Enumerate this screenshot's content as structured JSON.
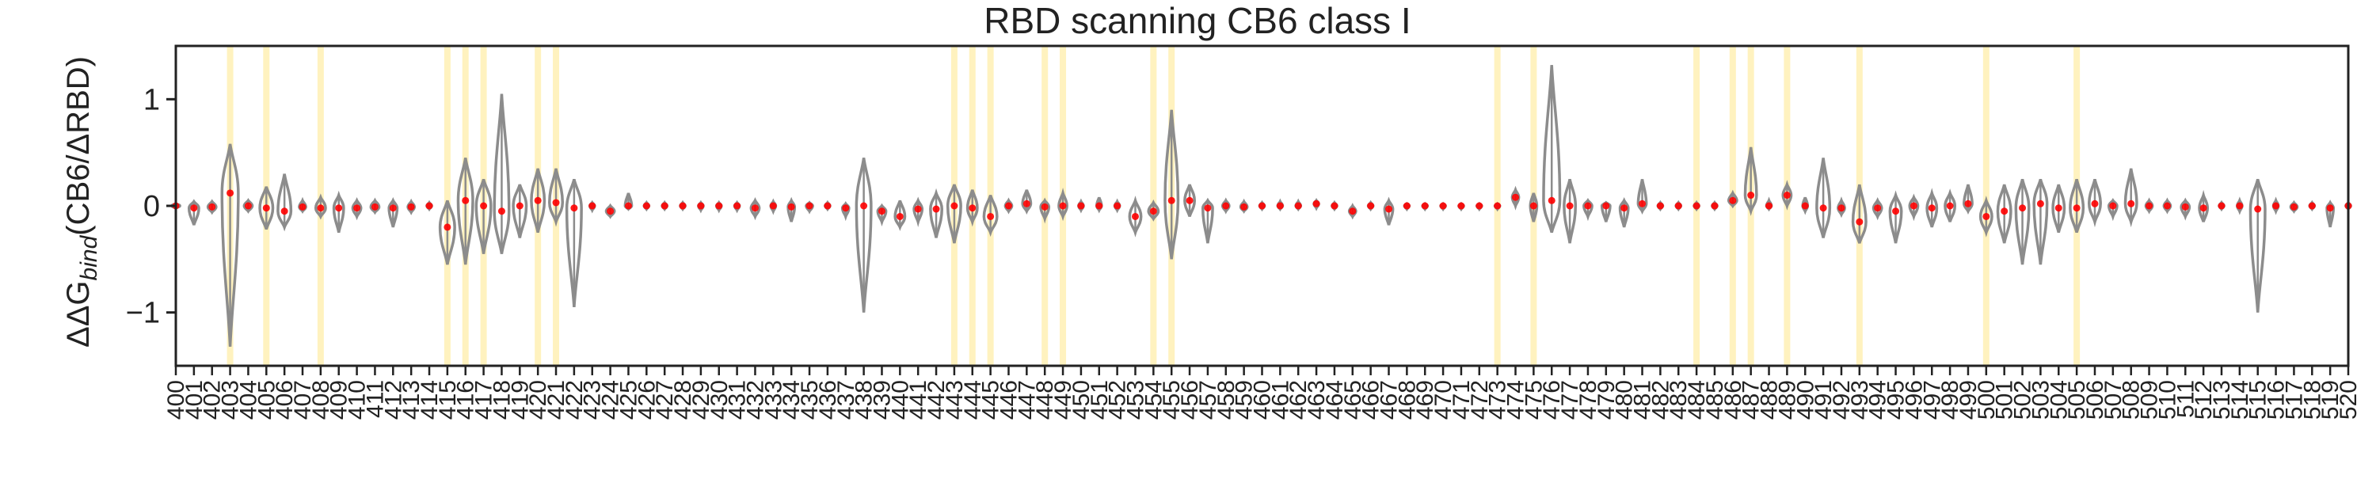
{
  "chart_data": {
    "type": "violin",
    "title": "RBD scanning CB6 class I",
    "ylabel_parts": {
      "prefix": "ΔΔG",
      "subscript": "bind",
      "suffix": "(CB6/ΔRBD)"
    },
    "xlabel": "",
    "ylim": [
      -1.5,
      1.5
    ],
    "y_ticks": [
      1,
      0,
      -1
    ],
    "xlim": [
      400,
      520
    ],
    "grid": false,
    "colors": {
      "violin": "#8c8c8c",
      "points": "#ff0000",
      "highlight": "#fff2bf",
      "axis": "#222222"
    },
    "highlighted_positions": [
      403,
      405,
      408,
      415,
      416,
      417,
      420,
      421,
      443,
      444,
      445,
      448,
      449,
      454,
      455,
      473,
      475,
      484,
      486,
      487,
      489,
      493,
      500,
      505
    ],
    "residues": [
      {
        "x": 400,
        "min": -0.02,
        "max": 0.02,
        "median": 0.0,
        "w": 0.5
      },
      {
        "x": 401,
        "min": -0.18,
        "max": 0.04,
        "median": -0.02,
        "w": 0.6
      },
      {
        "x": 402,
        "min": -0.06,
        "max": 0.04,
        "median": -0.01,
        "w": 0.5
      },
      {
        "x": 403,
        "min": -1.32,
        "max": 0.58,
        "median": 0.12,
        "w": 1.0
      },
      {
        "x": 404,
        "min": -0.05,
        "max": 0.05,
        "median": 0.0,
        "w": 0.5
      },
      {
        "x": 405,
        "min": -0.22,
        "max": 0.18,
        "median": -0.02,
        "w": 0.8
      },
      {
        "x": 406,
        "min": -0.2,
        "max": 0.3,
        "median": -0.05,
        "w": 0.8
      },
      {
        "x": 407,
        "min": -0.05,
        "max": 0.05,
        "median": -0.01,
        "w": 0.4
      },
      {
        "x": 408,
        "min": -0.1,
        "max": 0.08,
        "median": -0.02,
        "w": 0.6
      },
      {
        "x": 409,
        "min": -0.25,
        "max": 0.1,
        "median": -0.02,
        "w": 0.6
      },
      {
        "x": 410,
        "min": -0.1,
        "max": 0.05,
        "median": -0.02,
        "w": 0.5
      },
      {
        "x": 411,
        "min": -0.06,
        "max": 0.05,
        "median": -0.01,
        "w": 0.5
      },
      {
        "x": 412,
        "min": -0.2,
        "max": 0.05,
        "median": -0.02,
        "w": 0.5
      },
      {
        "x": 413,
        "min": -0.06,
        "max": 0.04,
        "median": -0.01,
        "w": 0.4
      },
      {
        "x": 414,
        "min": -0.03,
        "max": 0.03,
        "median": 0.0,
        "w": 0.3
      },
      {
        "x": 415,
        "min": -0.55,
        "max": 0.05,
        "median": -0.2,
        "w": 0.9
      },
      {
        "x": 416,
        "min": -0.55,
        "max": 0.45,
        "median": 0.05,
        "w": 0.9
      },
      {
        "x": 417,
        "min": -0.45,
        "max": 0.25,
        "median": 0.0,
        "w": 0.9
      },
      {
        "x": 418,
        "min": -0.45,
        "max": 1.05,
        "median": -0.05,
        "w": 0.9
      },
      {
        "x": 419,
        "min": -0.3,
        "max": 0.2,
        "median": 0.0,
        "w": 0.8
      },
      {
        "x": 420,
        "min": -0.25,
        "max": 0.35,
        "median": 0.05,
        "w": 0.8
      },
      {
        "x": 421,
        "min": -0.15,
        "max": 0.35,
        "median": 0.03,
        "w": 0.8
      },
      {
        "x": 422,
        "min": -0.95,
        "max": 0.25,
        "median": -0.02,
        "w": 0.9
      },
      {
        "x": 423,
        "min": -0.04,
        "max": 0.03,
        "median": 0.0,
        "w": 0.3
      },
      {
        "x": 424,
        "min": -0.1,
        "max": 0.0,
        "median": -0.05,
        "w": 0.5
      },
      {
        "x": 425,
        "min": -0.03,
        "max": 0.12,
        "median": 0.0,
        "w": 0.4
      },
      {
        "x": 426,
        "min": -0.03,
        "max": 0.03,
        "median": 0.0,
        "w": 0.3
      },
      {
        "x": 427,
        "min": -0.03,
        "max": 0.03,
        "median": 0.0,
        "w": 0.3
      },
      {
        "x": 428,
        "min": -0.03,
        "max": 0.03,
        "median": 0.0,
        "w": 0.3
      },
      {
        "x": 429,
        "min": -0.04,
        "max": 0.03,
        "median": 0.0,
        "w": 0.3
      },
      {
        "x": 430,
        "min": -0.04,
        "max": 0.03,
        "median": 0.0,
        "w": 0.3
      },
      {
        "x": 431,
        "min": -0.04,
        "max": 0.03,
        "median": 0.0,
        "w": 0.3
      },
      {
        "x": 432,
        "min": -0.1,
        "max": 0.05,
        "median": -0.02,
        "w": 0.5
      },
      {
        "x": 433,
        "min": -0.05,
        "max": 0.04,
        "median": 0.0,
        "w": 0.3
      },
      {
        "x": 434,
        "min": -0.15,
        "max": 0.05,
        "median": -0.01,
        "w": 0.4
      },
      {
        "x": 435,
        "min": -0.05,
        "max": 0.03,
        "median": 0.0,
        "w": 0.4
      },
      {
        "x": 436,
        "min": -0.03,
        "max": 0.03,
        "median": 0.0,
        "w": 0.3
      },
      {
        "x": 437,
        "min": -0.1,
        "max": 0.02,
        "median": -0.02,
        "w": 0.4
      },
      {
        "x": 438,
        "min": -1.0,
        "max": 0.45,
        "median": 0.0,
        "w": 0.9
      },
      {
        "x": 439,
        "min": -0.15,
        "max": 0.0,
        "median": -0.05,
        "w": 0.5
      },
      {
        "x": 440,
        "min": -0.2,
        "max": 0.05,
        "median": -0.1,
        "w": 0.6
      },
      {
        "x": 441,
        "min": -0.15,
        "max": 0.05,
        "median": -0.03,
        "w": 0.5
      },
      {
        "x": 442,
        "min": -0.3,
        "max": 0.12,
        "median": -0.03,
        "w": 0.7
      },
      {
        "x": 443,
        "min": -0.35,
        "max": 0.2,
        "median": 0.0,
        "w": 0.8
      },
      {
        "x": 444,
        "min": -0.15,
        "max": 0.15,
        "median": -0.02,
        "w": 0.6
      },
      {
        "x": 445,
        "min": -0.25,
        "max": 0.1,
        "median": -0.1,
        "w": 0.8
      },
      {
        "x": 446,
        "min": -0.05,
        "max": 0.05,
        "median": 0.0,
        "w": 0.4
      },
      {
        "x": 447,
        "min": -0.05,
        "max": 0.15,
        "median": 0.02,
        "w": 0.5
      },
      {
        "x": 448,
        "min": -0.12,
        "max": 0.05,
        "median": -0.01,
        "w": 0.5
      },
      {
        "x": 449,
        "min": -0.1,
        "max": 0.12,
        "median": 0.0,
        "w": 0.5
      },
      {
        "x": 450,
        "min": -0.04,
        "max": 0.04,
        "median": 0.0,
        "w": 0.3
      },
      {
        "x": 451,
        "min": -0.04,
        "max": 0.08,
        "median": 0.0,
        "w": 0.3
      },
      {
        "x": 452,
        "min": -0.04,
        "max": 0.04,
        "median": 0.0,
        "w": 0.3
      },
      {
        "x": 453,
        "min": -0.25,
        "max": 0.05,
        "median": -0.1,
        "w": 0.7
      },
      {
        "x": 454,
        "min": -0.12,
        "max": 0.03,
        "median": -0.05,
        "w": 0.6
      },
      {
        "x": 455,
        "min": -0.5,
        "max": 0.9,
        "median": 0.05,
        "w": 0.8
      },
      {
        "x": 456,
        "min": -0.1,
        "max": 0.2,
        "median": 0.05,
        "w": 0.6
      },
      {
        "x": 457,
        "min": -0.35,
        "max": 0.05,
        "median": -0.02,
        "w": 0.6
      },
      {
        "x": 458,
        "min": -0.05,
        "max": 0.05,
        "median": 0.0,
        "w": 0.4
      },
      {
        "x": 459,
        "min": -0.05,
        "max": 0.04,
        "median": -0.01,
        "w": 0.4
      },
      {
        "x": 460,
        "min": -0.03,
        "max": 0.03,
        "median": 0.0,
        "w": 0.3
      },
      {
        "x": 461,
        "min": -0.03,
        "max": 0.04,
        "median": 0.0,
        "w": 0.3
      },
      {
        "x": 462,
        "min": -0.03,
        "max": 0.04,
        "median": 0.0,
        "w": 0.3
      },
      {
        "x": 463,
        "min": -0.02,
        "max": 0.05,
        "median": 0.02,
        "w": 0.3
      },
      {
        "x": 464,
        "min": -0.03,
        "max": 0.03,
        "median": 0.0,
        "w": 0.3
      },
      {
        "x": 465,
        "min": -0.1,
        "max": 0.0,
        "median": -0.05,
        "w": 0.4
      },
      {
        "x": 466,
        "min": -0.03,
        "max": 0.03,
        "median": 0.0,
        "w": 0.3
      },
      {
        "x": 467,
        "min": -0.18,
        "max": 0.05,
        "median": -0.03,
        "w": 0.5
      },
      {
        "x": 468,
        "min": -0.03,
        "max": 0.02,
        "median": 0.0,
        "w": 0.3
      },
      {
        "x": 469,
        "min": -0.03,
        "max": 0.02,
        "median": 0.0,
        "w": 0.3
      },
      {
        "x": 470,
        "min": -0.03,
        "max": 0.02,
        "median": 0.0,
        "w": 0.3
      },
      {
        "x": 471,
        "min": -0.03,
        "max": 0.02,
        "median": 0.0,
        "w": 0.3
      },
      {
        "x": 472,
        "min": -0.03,
        "max": 0.02,
        "median": 0.0,
        "w": 0.3
      },
      {
        "x": 473,
        "min": -0.03,
        "max": 0.02,
        "median": 0.0,
        "w": 0.3
      },
      {
        "x": 474,
        "min": 0.0,
        "max": 0.15,
        "median": 0.08,
        "w": 0.4
      },
      {
        "x": 475,
        "min": -0.15,
        "max": 0.12,
        "median": 0.0,
        "w": 0.4
      },
      {
        "x": 476,
        "min": -0.25,
        "max": 1.32,
        "median": 0.05,
        "w": 1.0
      },
      {
        "x": 477,
        "min": -0.35,
        "max": 0.25,
        "median": 0.0,
        "w": 0.7
      },
      {
        "x": 478,
        "min": -0.1,
        "max": 0.05,
        "median": 0.0,
        "w": 0.5
      },
      {
        "x": 479,
        "min": -0.15,
        "max": 0.03,
        "median": 0.0,
        "w": 0.5
      },
      {
        "x": 480,
        "min": -0.2,
        "max": 0.05,
        "median": -0.02,
        "w": 0.5
      },
      {
        "x": 481,
        "min": -0.05,
        "max": 0.25,
        "median": 0.02,
        "w": 0.5
      },
      {
        "x": 482,
        "min": -0.03,
        "max": 0.03,
        "median": 0.0,
        "w": 0.3
      },
      {
        "x": 483,
        "min": -0.03,
        "max": 0.03,
        "median": 0.0,
        "w": 0.3
      },
      {
        "x": 484,
        "min": -0.03,
        "max": 0.03,
        "median": 0.0,
        "w": 0.3
      },
      {
        "x": 485,
        "min": -0.03,
        "max": 0.03,
        "median": 0.0,
        "w": 0.3
      },
      {
        "x": 486,
        "min": 0.0,
        "max": 0.12,
        "median": 0.05,
        "w": 0.5
      },
      {
        "x": 487,
        "min": -0.05,
        "max": 0.55,
        "median": 0.1,
        "w": 0.7
      },
      {
        "x": 488,
        "min": -0.03,
        "max": 0.05,
        "median": 0.0,
        "w": 0.3
      },
      {
        "x": 489,
        "min": 0.0,
        "max": 0.2,
        "median": 0.1,
        "w": 0.5
      },
      {
        "x": 490,
        "min": -0.05,
        "max": 0.08,
        "median": 0.0,
        "w": 0.3
      },
      {
        "x": 491,
        "min": -0.3,
        "max": 0.45,
        "median": -0.02,
        "w": 0.8
      },
      {
        "x": 492,
        "min": -0.08,
        "max": 0.05,
        "median": -0.02,
        "w": 0.4
      },
      {
        "x": 493,
        "min": -0.35,
        "max": 0.2,
        "median": -0.15,
        "w": 0.8
      },
      {
        "x": 494,
        "min": -0.1,
        "max": 0.05,
        "median": -0.02,
        "w": 0.5
      },
      {
        "x": 495,
        "min": -0.35,
        "max": 0.1,
        "median": -0.05,
        "w": 0.7
      },
      {
        "x": 496,
        "min": -0.1,
        "max": 0.08,
        "median": 0.0,
        "w": 0.5
      },
      {
        "x": 497,
        "min": -0.2,
        "max": 0.12,
        "median": -0.02,
        "w": 0.6
      },
      {
        "x": 498,
        "min": -0.15,
        "max": 0.12,
        "median": 0.0,
        "w": 0.6
      },
      {
        "x": 499,
        "min": -0.05,
        "max": 0.2,
        "median": 0.02,
        "w": 0.5
      },
      {
        "x": 500,
        "min": -0.25,
        "max": 0.05,
        "median": -0.1,
        "w": 0.7
      },
      {
        "x": 501,
        "min": -0.35,
        "max": 0.2,
        "median": -0.05,
        "w": 0.8
      },
      {
        "x": 502,
        "min": -0.55,
        "max": 0.25,
        "median": -0.02,
        "w": 0.8
      },
      {
        "x": 503,
        "min": -0.55,
        "max": 0.25,
        "median": 0.02,
        "w": 0.8
      },
      {
        "x": 504,
        "min": -0.25,
        "max": 0.2,
        "median": -0.02,
        "w": 0.7
      },
      {
        "x": 505,
        "min": -0.25,
        "max": 0.25,
        "median": -0.02,
        "w": 0.8
      },
      {
        "x": 506,
        "min": -0.15,
        "max": 0.25,
        "median": 0.02,
        "w": 0.7
      },
      {
        "x": 507,
        "min": -0.1,
        "max": 0.05,
        "median": 0.0,
        "w": 0.5
      },
      {
        "x": 508,
        "min": -0.15,
        "max": 0.35,
        "median": 0.02,
        "w": 0.7
      },
      {
        "x": 509,
        "min": -0.05,
        "max": 0.05,
        "median": 0.0,
        "w": 0.4
      },
      {
        "x": 510,
        "min": -0.05,
        "max": 0.05,
        "median": 0.0,
        "w": 0.4
      },
      {
        "x": 511,
        "min": -0.1,
        "max": 0.05,
        "median": -0.01,
        "w": 0.5
      },
      {
        "x": 512,
        "min": -0.15,
        "max": 0.1,
        "median": -0.02,
        "w": 0.5
      },
      {
        "x": 513,
        "min": -0.03,
        "max": 0.03,
        "median": 0.0,
        "w": 0.3
      },
      {
        "x": 514,
        "min": -0.05,
        "max": 0.05,
        "median": 0.0,
        "w": 0.3
      },
      {
        "x": 515,
        "min": -1.0,
        "max": 0.25,
        "median": -0.03,
        "w": 0.9
      },
      {
        "x": 516,
        "min": -0.05,
        "max": 0.05,
        "median": 0.0,
        "w": 0.3
      },
      {
        "x": 517,
        "min": -0.05,
        "max": 0.03,
        "median": -0.01,
        "w": 0.4
      },
      {
        "x": 518,
        "min": -0.03,
        "max": 0.03,
        "median": 0.0,
        "w": 0.3
      },
      {
        "x": 519,
        "min": -0.2,
        "max": 0.03,
        "median": -0.02,
        "w": 0.4
      },
      {
        "x": 520,
        "min": -0.03,
        "max": 0.03,
        "median": 0.0,
        "w": 0.3
      }
    ]
  }
}
